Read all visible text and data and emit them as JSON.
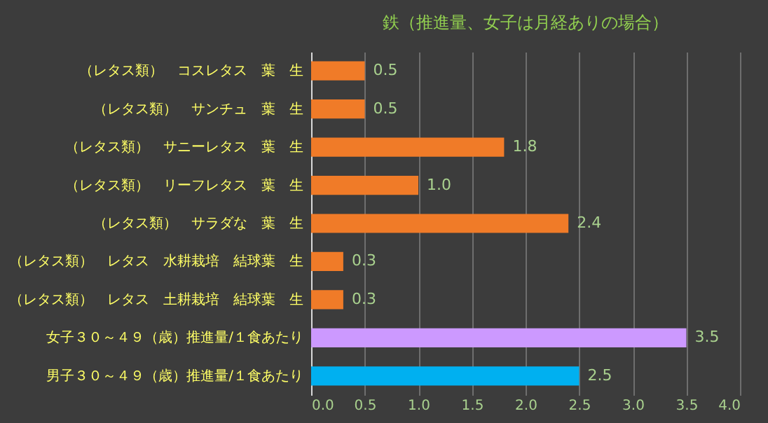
{
  "chart_data": {
    "type": "bar",
    "orientation": "horizontal",
    "title": "鉄（推進量、女子は月経ありの場合）",
    "categories": [
      "（レタス類）　コスレタス　葉　生",
      "（レタス類）　サンチュ　葉　生",
      "（レタス類）　サニーレタス　葉　生",
      "（レタス類）　リーフレタス　葉　生",
      "（レタス類）　サラダな　葉　生",
      "（レタス類）　レタス　水耕栽培　結球葉　生",
      "（レタス類）　レタス　土耕栽培　結球葉　生",
      "女子３０～４９（歳）推進量/１食あたり",
      "男子３０～４９（歳）推進量/１食あたり"
    ],
    "values": [
      0.5,
      0.5,
      1.8,
      1.0,
      2.4,
      0.3,
      0.3,
      3.5,
      2.5
    ],
    "colors": [
      "#f07b28",
      "#f07b28",
      "#f07b28",
      "#f07b28",
      "#f07b28",
      "#f07b28",
      "#f07b28",
      "#cc99ff",
      "#00b0f0"
    ],
    "xlim": [
      0,
      4
    ],
    "xticks": [
      {
        "value": 0,
        "label": "0.0"
      },
      {
        "value": 0.5,
        "label": "0.5"
      },
      {
        "value": 1,
        "label": "1.0"
      },
      {
        "value": 1.5,
        "label": "1.5"
      },
      {
        "value": 2,
        "label": "2.0"
      },
      {
        "value": 2.5,
        "label": "2.5"
      },
      {
        "value": 3,
        "label": "3.0"
      },
      {
        "value": 3.5,
        "label": "3.5"
      },
      {
        "value": 4,
        "label": "4.0"
      }
    ],
    "value_labels": [
      "0.5",
      "0.5",
      "1.8",
      "1.0",
      "2.4",
      "0.3",
      "0.3",
      "3.5",
      "2.5"
    ],
    "grid": "x"
  }
}
